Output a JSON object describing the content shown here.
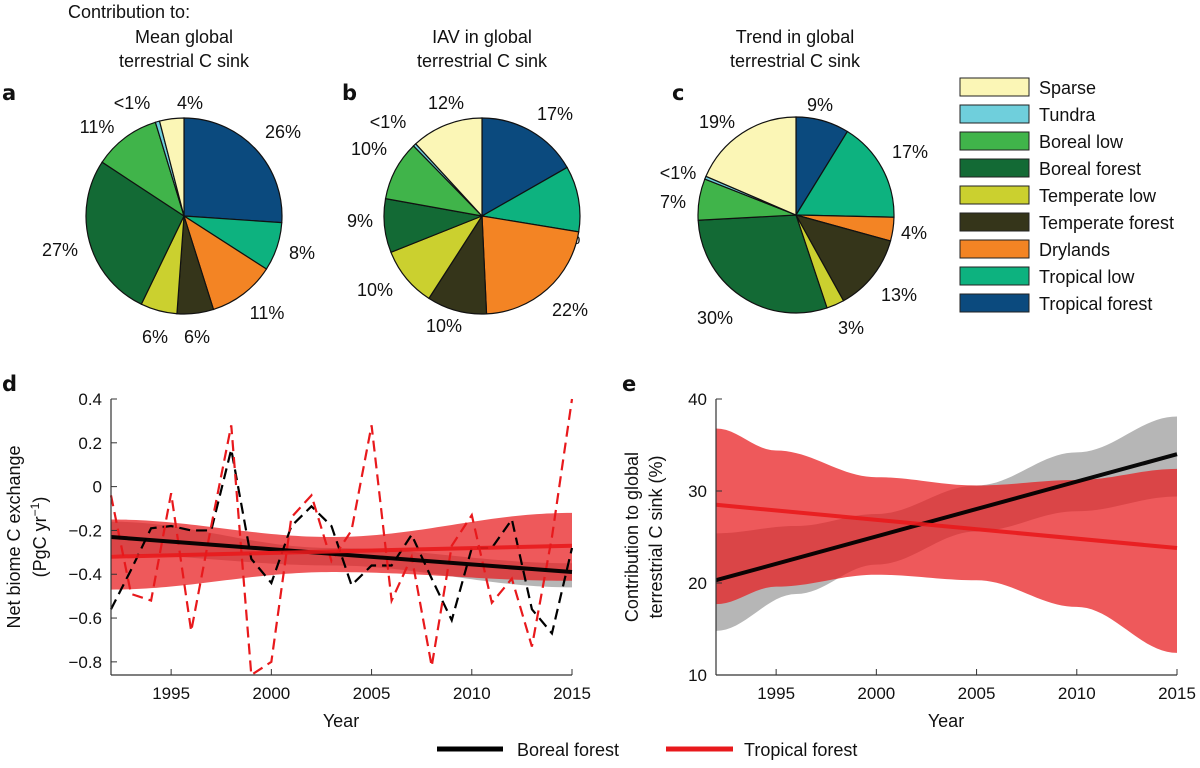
{
  "header": {
    "contribution_to": "Contribution to:"
  },
  "categories": [
    {
      "name": "Sparse",
      "color": "#fbf6b6"
    },
    {
      "name": "Tundra",
      "color": "#6fcfdc"
    },
    {
      "name": "Boreal low",
      "color": "#40b44a"
    },
    {
      "name": "Boreal forest",
      "color": "#136a35"
    },
    {
      "name": "Temperate low",
      "color": "#cbd02f"
    },
    {
      "name": "Temperate forest",
      "color": "#35351a"
    },
    {
      "name": "Drylands",
      "color": "#f38424"
    },
    {
      "name": "Tropical low",
      "color": "#0db27f"
    },
    {
      "name": "Tropical forest",
      "color": "#0b4a7e"
    }
  ],
  "chart_data": [
    {
      "type": "pie",
      "panel": "a",
      "title": [
        "Mean global",
        "terrestrial C sink"
      ],
      "order_clockwise_from_top": [
        "Tropical forest",
        "Tropical low",
        "Drylands",
        "Temperate forest",
        "Temperate low",
        "Boreal forest",
        "Boreal low",
        "Tundra",
        "Sparse"
      ],
      "values": [
        26,
        8,
        11,
        6,
        6,
        27,
        11,
        0.7,
        4
      ],
      "labels": [
        "26%",
        "8%",
        "11%",
        "6%",
        "6%",
        "27%",
        "11%",
        "<1%",
        "4%"
      ]
    },
    {
      "type": "pie",
      "panel": "b",
      "title": [
        "IAV in global",
        "terrestrial C sink"
      ],
      "order_clockwise_from_top": [
        "Tropical forest",
        "Tropical low",
        "Drylands",
        "Temperate forest",
        "Temperate low",
        "Boreal forest",
        "Boreal low",
        "Tundra",
        "Sparse"
      ],
      "values": [
        17,
        11,
        22,
        10,
        10,
        9,
        10,
        0.5,
        12
      ],
      "labels": [
        "17%",
        "11%",
        "22%",
        "10%",
        "10%",
        "9%",
        "10%",
        "<1%",
        "12%"
      ]
    },
    {
      "type": "pie",
      "panel": "c",
      "title": [
        "Trend in global",
        "terrestrial C sink"
      ],
      "order_clockwise_from_top": [
        "Tropical forest",
        "Tropical low",
        "Drylands",
        "Temperate forest",
        "Temperate low",
        "Boreal forest",
        "Boreal low",
        "Tundra",
        "Sparse"
      ],
      "values": [
        9,
        17,
        4,
        13,
        3,
        30,
        7,
        0.5,
        19
      ],
      "labels": [
        "9%",
        "17%",
        "4%",
        "13%",
        "3%",
        "30%",
        "7%",
        "<1%",
        "19%"
      ]
    },
    {
      "type": "line",
      "panel": "d",
      "xlabel": "Year",
      "ylabel": [
        "Net biome C exchange",
        "(PgC yr",
        "−1",
        ")"
      ],
      "xlim": [
        1992,
        2015
      ],
      "ylim": [
        -0.86,
        0.4
      ],
      "xticks": [
        1995,
        2000,
        2005,
        2010,
        2015
      ],
      "xtick_labels": [
        "1995",
        "2000",
        "2005",
        "2010",
        "2015"
      ],
      "yticks": [
        0.4,
        0.2,
        0,
        -0.2,
        -0.4,
        -0.6,
        -0.8
      ],
      "ytick_labels": [
        "0.4",
        "0.2",
        "0",
        "−0.2",
        "−0.4",
        "−0.6",
        "−0.8"
      ],
      "x": [
        1992,
        1993,
        1994,
        1995,
        1996,
        1997,
        1998,
        1999,
        2000,
        2001,
        2002,
        2003,
        2004,
        2005,
        2006,
        2007,
        2008,
        2009,
        2010,
        2011,
        2012,
        2013,
        2014,
        2015
      ],
      "series": [
        {
          "name": "Boreal forest",
          "color": "#000000",
          "values": [
            -0.56,
            -0.38,
            -0.19,
            -0.18,
            -0.2,
            -0.2,
            0.17,
            -0.33,
            -0.44,
            -0.18,
            -0.09,
            -0.18,
            -0.45,
            -0.36,
            -0.36,
            -0.22,
            -0.42,
            -0.61,
            -0.28,
            -0.28,
            -0.15,
            -0.56,
            -0.67,
            -0.28
          ],
          "trend": [
            -0.23,
            -0.39
          ],
          "band_years": [
            1992,
            2003,
            2015
          ],
          "band_upper": [
            -0.16,
            -0.28,
            -0.35
          ],
          "band_lower": [
            -0.31,
            -0.36,
            -0.46
          ]
        },
        {
          "name": "Tropical forest",
          "color": "#e8191c",
          "values": [
            -0.04,
            -0.49,
            -0.52,
            -0.03,
            -0.66,
            -0.18,
            0.28,
            -0.86,
            -0.8,
            -0.14,
            -0.04,
            -0.34,
            -0.2,
            0.28,
            -0.52,
            -0.32,
            -0.82,
            -0.27,
            -0.13,
            -0.53,
            -0.42,
            -0.73,
            -0.23,
            0.4
          ],
          "trend": [
            -0.32,
            -0.27
          ],
          "band_years": [
            1992,
            2003,
            2015
          ],
          "band_upper": [
            -0.15,
            -0.23,
            -0.12
          ],
          "band_lower": [
            -0.47,
            -0.39,
            -0.43
          ]
        }
      ]
    },
    {
      "type": "line",
      "panel": "e",
      "xlabel": "Year",
      "ylabel": [
        "Contribution to global",
        "terrestrial C sink (%)"
      ],
      "xlim": [
        1992,
        2015
      ],
      "ylim": [
        10,
        40
      ],
      "xticks": [
        1995,
        2000,
        2005,
        2010,
        2015
      ],
      "xtick_labels": [
        "1995",
        "2000",
        "2005",
        "2010",
        "2015"
      ],
      "yticks": [
        10,
        20,
        30,
        40
      ],
      "ytick_labels": [
        "10",
        "20",
        "30",
        "40"
      ],
      "series": [
        {
          "name": "Boreal forest",
          "color": "#000000",
          "trend": [
            20.3,
            34.0
          ],
          "band_years": [
            1992,
            1996,
            2000,
            2005,
            2010,
            2015
          ],
          "band_upper": [
            25.4,
            26.2,
            27.5,
            30.6,
            34.2,
            38.1
          ],
          "band_lower": [
            14.8,
            18.8,
            22.0,
            25.6,
            27.8,
            29.4
          ]
        },
        {
          "name": "Tropical forest",
          "color": "#e8191c",
          "trend": [
            28.5,
            23.8
          ],
          "band_years": [
            1992,
            1995,
            2000,
            2005,
            2010,
            2015
          ],
          "band_upper": [
            36.8,
            34.4,
            31.5,
            30.6,
            31.2,
            32.4
          ],
          "band_lower": [
            17.7,
            19.6,
            20.9,
            20.3,
            17.4,
            12.4
          ]
        }
      ]
    }
  ],
  "bottom_legend": [
    {
      "label": "Boreal forest",
      "color": "#000000"
    },
    {
      "label": "Tropical forest",
      "color": "#e8191c"
    }
  ]
}
